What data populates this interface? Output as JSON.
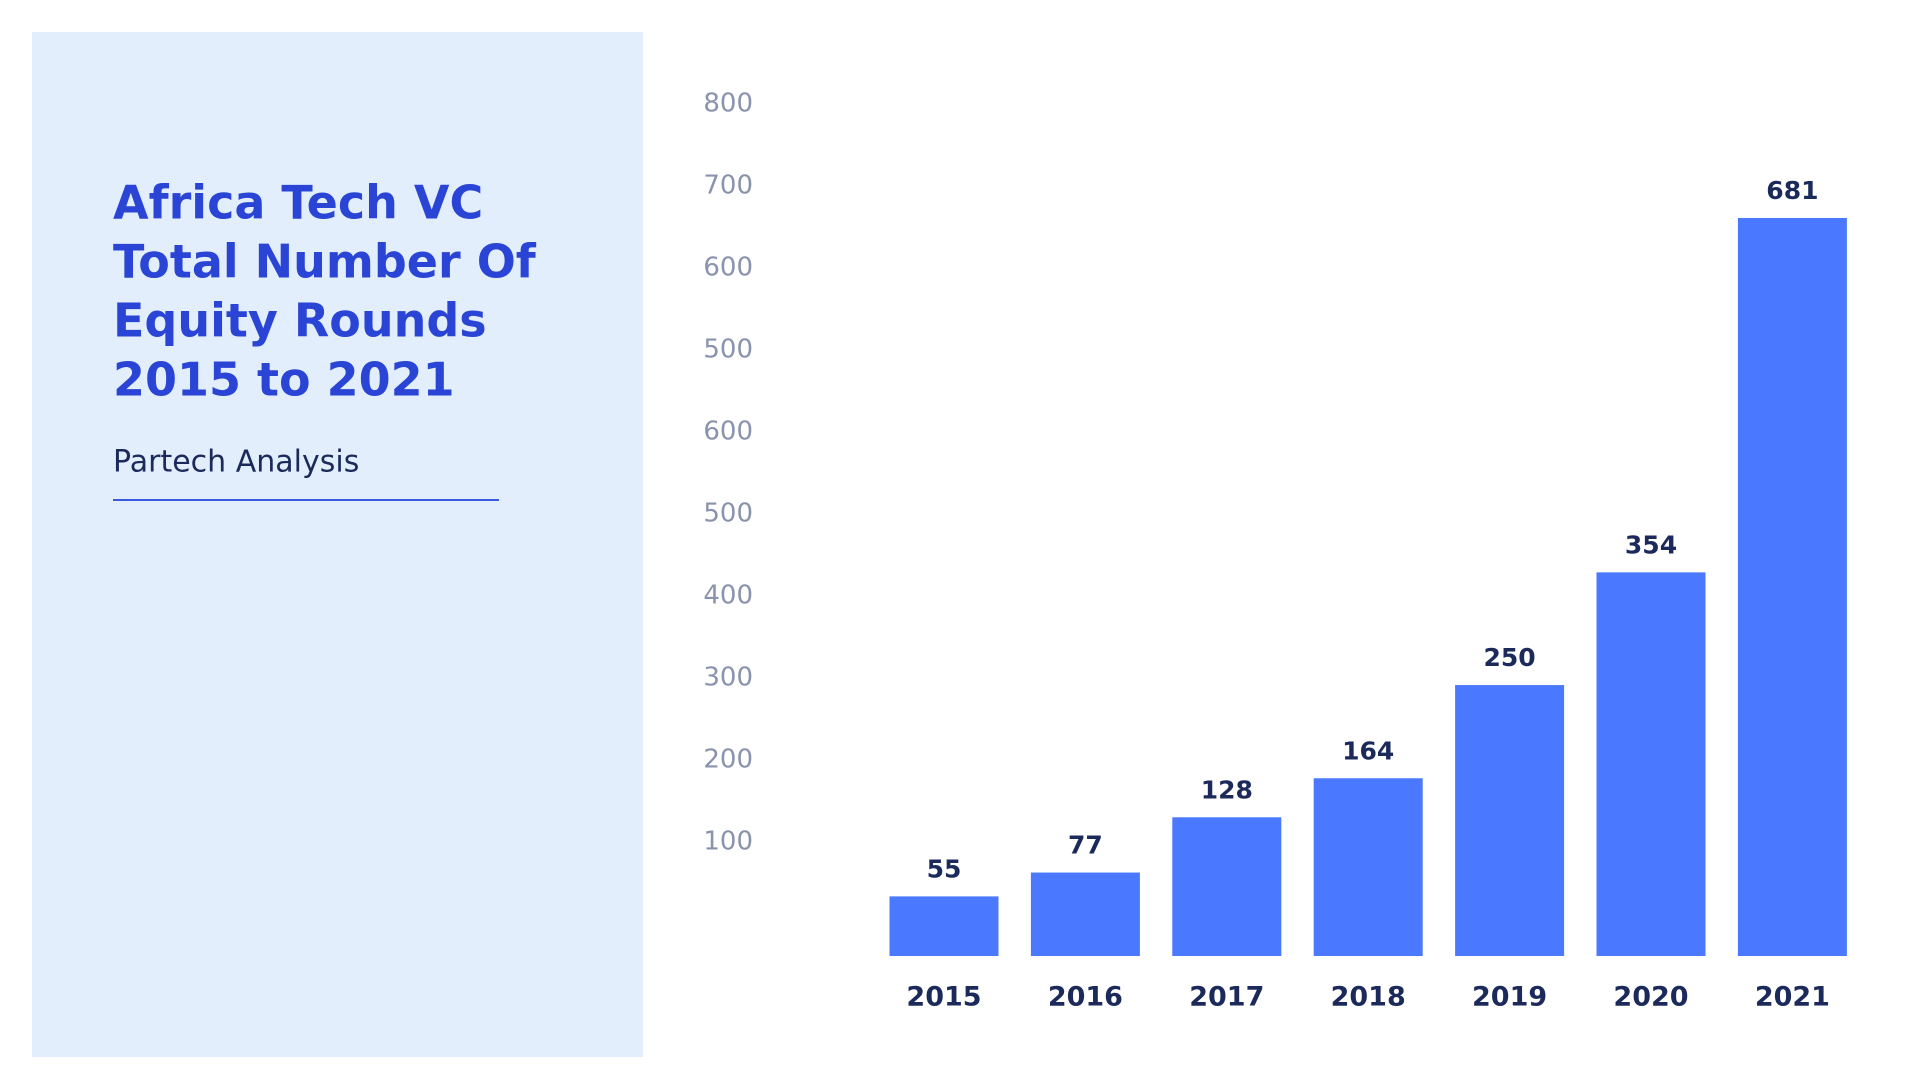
{
  "chart_data": {
    "type": "bar",
    "title_lines": [
      "Africa Tech VC",
      "Total Number Of",
      "Equity Rounds",
      "2015 to 2021"
    ],
    "subtitle": "Partech Analysis",
    "categories": [
      "2015",
      "2016",
      "2017",
      "2018",
      "2019",
      "2020",
      "2021"
    ],
    "values": [
      55,
      77,
      128,
      164,
      250,
      354,
      681
    ],
    "color": "#4a78ff",
    "ylim": [
      0,
      800
    ],
    "y_axis_labels": [
      800,
      700,
      600,
      500,
      600,
      500,
      400,
      300,
      200,
      100
    ],
    "grid": false
  }
}
